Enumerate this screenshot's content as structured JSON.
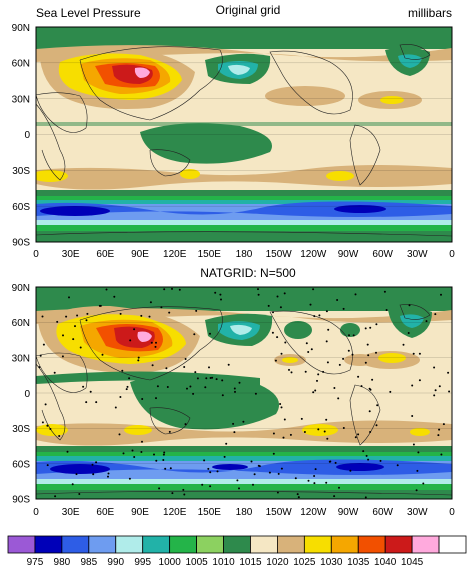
{
  "panel1": {
    "title_left": "Sea Level Pressure",
    "title_center": "Original grid",
    "title_right": "millibars"
  },
  "panel2": {
    "title_center": "NATGRID: N=500"
  },
  "axes": {
    "lat_labels": [
      "90N",
      "60N",
      "30N",
      "0",
      "30S",
      "60S",
      "90S"
    ],
    "lon_labels": [
      "0",
      "30E",
      "60E",
      "90E",
      "120E",
      "150E",
      "180",
      "150W",
      "120W",
      "90W",
      "60W",
      "30W",
      "0"
    ]
  },
  "colorbar": {
    "labels": [
      "975",
      "980",
      "985",
      "990",
      "995",
      "1000",
      "1005",
      "1010",
      "1015",
      "1020",
      "1025",
      "1030",
      "1035",
      "1040",
      "1045"
    ],
    "colors": [
      "#9b59d6",
      "#0000b8",
      "#2e5de6",
      "#6e9cf0",
      "#b0ecea",
      "#22b2a8",
      "#24b449",
      "#8cd160",
      "#2e8a4c",
      "#f5e7c4",
      "#d8b27a",
      "#f7de00",
      "#f5a700",
      "#f25000",
      "#cc1a1a",
      "#ffaadd",
      "#ffffff"
    ]
  },
  "colors": {
    "ocean_band_tan": "#f5e7c4",
    "land_green": "#2e8a4c",
    "coast": "#222222"
  }
}
